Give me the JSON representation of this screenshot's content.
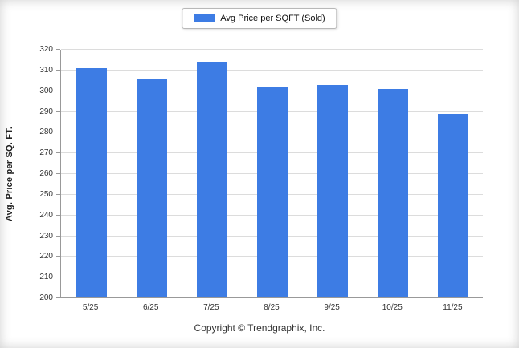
{
  "legend": {
    "label": "Avg Price per SQFT (Sold)"
  },
  "footer": {
    "copyright": "Copyright © Trendgraphix, Inc."
  },
  "colors": {
    "bar": "#3d7ce4",
    "grid": "#dcdcdc",
    "axis": "#999999"
  },
  "chart_data": {
    "type": "bar",
    "title": "",
    "legend": "Avg Price per SQFT (Sold)",
    "categories": [
      "5/25",
      "6/25",
      "7/25",
      "8/25",
      "9/25",
      "10/25",
      "11/25"
    ],
    "values": [
      311,
      306,
      314,
      302,
      303,
      301,
      289
    ],
    "xlabel": "",
    "ylabel": "Avg. Price per SQ. FT.",
    "ylim": [
      200,
      320
    ],
    "ytick_step": 10,
    "grid": true,
    "legend_position": "top-center"
  }
}
